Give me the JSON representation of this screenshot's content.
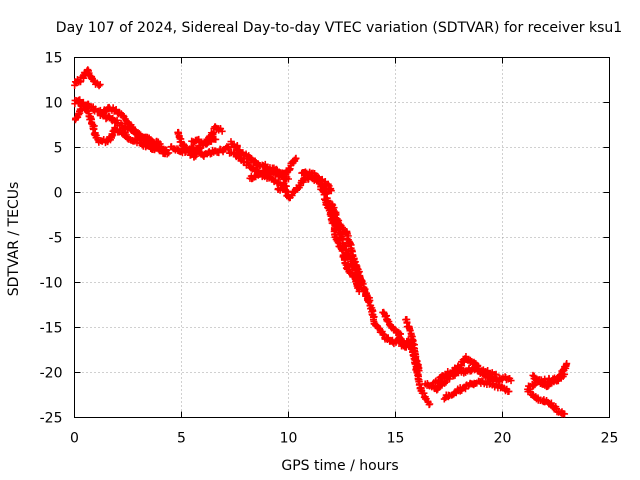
{
  "chart_data": {
    "type": "scatter",
    "title": "Day 107 of 2024, Sidereal Day-to-day VTEC variation (SDTVAR) for receiver ksu1",
    "xlabel": "GPS time / hours",
    "ylabel": "SDTVAR / TECUs",
    "xlim": [
      0,
      25
    ],
    "ylim": [
      -25,
      15
    ],
    "xticks": [
      0,
      5,
      10,
      15,
      20,
      25
    ],
    "yticks": [
      15,
      10,
      5,
      0,
      -5,
      -10,
      -15,
      -20,
      -25
    ],
    "grid": true,
    "marker": "+",
    "color": "#ff0000",
    "series": [
      {
        "name": "SDTVAR",
        "tracks": [
          [
            [
              0.0,
              12.0
            ],
            [
              0.25,
              12.5
            ],
            [
              0.45,
              13.0
            ],
            [
              0.6,
              13.5
            ],
            [
              0.7,
              13.2
            ],
            [
              0.85,
              12.5
            ],
            [
              1.0,
              12.2
            ],
            [
              1.2,
              12.0
            ]
          ],
          [
            [
              0.0,
              10.0
            ],
            [
              0.2,
              10.3
            ],
            [
              0.35,
              10.0
            ]
          ],
          [
            [
              0.0,
              8.0
            ],
            [
              0.2,
              8.8
            ],
            [
              0.4,
              9.8
            ],
            [
              0.6,
              9.7
            ],
            [
              0.8,
              9.4
            ],
            [
              1.0,
              9.2
            ],
            [
              1.3,
              8.8
            ],
            [
              1.5,
              9.2
            ],
            [
              1.8,
              9.3
            ],
            [
              2.0,
              9.0
            ],
            [
              2.3,
              8.5
            ],
            [
              2.5,
              7.8
            ],
            [
              2.7,
              7.2
            ],
            [
              3.0,
              6.3
            ],
            [
              3.3,
              5.8
            ],
            [
              3.6,
              5.0
            ],
            [
              4.0,
              4.9
            ],
            [
              4.3,
              4.7
            ]
          ],
          [
            [
              0.5,
              9.5
            ],
            [
              0.7,
              8.5
            ],
            [
              0.9,
              7.2
            ],
            [
              1.0,
              6.0
            ],
            [
              1.2,
              5.6
            ],
            [
              1.5,
              5.7
            ],
            [
              1.7,
              6.1
            ],
            [
              1.9,
              7.0
            ],
            [
              2.2,
              6.8
            ],
            [
              2.5,
              6.2
            ],
            [
              2.8,
              5.8
            ],
            [
              3.1,
              5.4
            ],
            [
              3.4,
              5.1
            ],
            [
              3.6,
              5.3
            ],
            [
              3.9,
              4.9
            ],
            [
              4.1,
              4.6
            ],
            [
              4.4,
              4.4
            ]
          ],
          [
            [
              1.2,
              8.7
            ],
            [
              1.6,
              8.3
            ],
            [
              2.0,
              7.8
            ],
            [
              2.4,
              7.2
            ],
            [
              2.8,
              6.8
            ],
            [
              3.1,
              6.2
            ],
            [
              3.4,
              6.0
            ],
            [
              3.7,
              5.6
            ],
            [
              4.0,
              5.4
            ]
          ],
          [
            [
              4.5,
              5.0
            ],
            [
              4.8,
              4.9
            ],
            [
              5.0,
              4.5
            ],
            [
              5.2,
              4.6
            ],
            [
              5.5,
              5.0
            ],
            [
              5.8,
              4.7
            ],
            [
              6.0,
              4.2
            ],
            [
              6.3,
              4.4
            ],
            [
              6.6,
              4.6
            ],
            [
              6.9,
              4.7
            ],
            [
              7.2,
              5.0
            ]
          ],
          [
            [
              4.8,
              6.8
            ],
            [
              5.0,
              5.5
            ],
            [
              5.3,
              4.6
            ],
            [
              5.6,
              4.0
            ],
            [
              5.8,
              4.8
            ],
            [
              6.1,
              5.5
            ],
            [
              6.4,
              6.4
            ],
            [
              6.6,
              7.2
            ],
            [
              6.9,
              6.8
            ]
          ],
          [
            [
              5.5,
              5.5
            ],
            [
              5.8,
              5.8
            ],
            [
              6.0,
              5.4
            ],
            [
              6.3,
              5.6
            ],
            [
              6.6,
              5.9
            ]
          ],
          [
            [
              7.3,
              5.5
            ],
            [
              7.6,
              5.0
            ],
            [
              7.8,
              4.3
            ],
            [
              8.1,
              4.0
            ],
            [
              8.3,
              3.7
            ],
            [
              8.6,
              3.1
            ],
            [
              8.8,
              3.2
            ],
            [
              9.0,
              2.6
            ],
            [
              9.3,
              2.6
            ],
            [
              9.6,
              2.1
            ],
            [
              9.8,
              1.5
            ],
            [
              10.0,
              1.5
            ]
          ],
          [
            [
              7.2,
              4.6
            ],
            [
              7.5,
              4.4
            ],
            [
              7.7,
              3.9
            ],
            [
              8.0,
              3.3
            ],
            [
              8.3,
              2.8
            ],
            [
              8.5,
              2.4
            ],
            [
              8.8,
              1.9
            ],
            [
              9.0,
              1.7
            ],
            [
              9.3,
              1.4
            ],
            [
              9.5,
              1.1
            ],
            [
              9.7,
              0.9
            ],
            [
              9.9,
              0.7
            ]
          ],
          [
            [
              8.2,
              1.6
            ],
            [
              8.5,
              1.9
            ],
            [
              8.8,
              2.3
            ],
            [
              9.1,
              2.2
            ],
            [
              9.4,
              2.0
            ],
            [
              9.6,
              1.9
            ],
            [
              9.9,
              2.3
            ],
            [
              10.0,
              2.6
            ],
            [
              10.2,
              3.3
            ],
            [
              10.35,
              3.8
            ]
          ],
          [
            [
              9.5,
              0.3
            ],
            [
              9.8,
              0.5
            ],
            [
              10.0,
              -0.6
            ],
            [
              10.3,
              0.1
            ],
            [
              10.6,
              1.1
            ],
            [
              10.8,
              1.6
            ],
            [
              11.0,
              1.7
            ],
            [
              11.3,
              1.5
            ],
            [
              11.6,
              0.6
            ],
            [
              11.8,
              -0.1
            ]
          ],
          [
            [
              10.6,
              2.0
            ],
            [
              10.9,
              2.2
            ],
            [
              11.2,
              2.0
            ],
            [
              11.4,
              1.5
            ],
            [
              11.6,
              1.3
            ],
            [
              11.8,
              0.9
            ],
            [
              12.0,
              0.2
            ]
          ],
          [
            [
              11.5,
              0.5
            ],
            [
              11.8,
              -0.5
            ],
            [
              12.0,
              -1.8
            ],
            [
              12.2,
              -3.2
            ],
            [
              12.4,
              -4.5
            ],
            [
              12.6,
              -5.8
            ],
            [
              12.8,
              -7.0
            ],
            [
              13.0,
              -8.0
            ],
            [
              13.2,
              -9.0
            ],
            [
              13.4,
              -10.0
            ]
          ],
          [
            [
              11.7,
              -0.8
            ],
            [
              11.9,
              -2.0
            ],
            [
              12.1,
              -3.5
            ],
            [
              12.2,
              -4.8
            ],
            [
              12.3,
              -5.4
            ],
            [
              12.5,
              -6.4
            ],
            [
              12.6,
              -7.3
            ],
            [
              12.7,
              -8.3
            ],
            [
              12.9,
              -9.0
            ],
            [
              13.1,
              -9.5
            ],
            [
              13.3,
              -11.0
            ]
          ],
          [
            [
              12.0,
              -1.2
            ],
            [
              12.3,
              -3.0
            ],
            [
              12.5,
              -3.9
            ],
            [
              12.7,
              -4.5
            ],
            [
              12.9,
              -5.8
            ],
            [
              13.0,
              -7.2
            ],
            [
              13.2,
              -8.3
            ],
            [
              13.4,
              -9.7
            ],
            [
              13.6,
              -11.2
            ],
            [
              13.8,
              -12.0
            ]
          ],
          [
            [
              13.5,
              -10.7
            ],
            [
              13.7,
              -11.8
            ],
            [
              13.9,
              -13.0
            ],
            [
              14.0,
              -14.3
            ],
            [
              14.2,
              -15.1
            ],
            [
              14.4,
              -15.7
            ],
            [
              14.6,
              -16.3
            ],
            [
              14.8,
              -16.4
            ],
            [
              15.0,
              -16.7
            ],
            [
              15.2,
              -16.2
            ],
            [
              15.4,
              -16.8
            ],
            [
              15.6,
              -16.5
            ]
          ],
          [
            [
              14.4,
              -13.2
            ],
            [
              14.6,
              -14.1
            ],
            [
              14.8,
              -14.8
            ],
            [
              15.0,
              -15.3
            ],
            [
              15.2,
              -15.8
            ],
            [
              15.3,
              -17.0
            ],
            [
              15.5,
              -17.2
            ]
          ],
          [
            [
              15.6,
              -16.5
            ],
            [
              15.8,
              -17.5
            ],
            [
              15.9,
              -18.8
            ],
            [
              16.0,
              -20.0
            ],
            [
              16.1,
              -21.0
            ],
            [
              16.2,
              -22.0
            ],
            [
              16.4,
              -23.0
            ],
            [
              16.6,
              -23.5
            ]
          ],
          [
            [
              15.5,
              -14.2
            ],
            [
              15.7,
              -15.5
            ],
            [
              15.8,
              -16.4
            ],
            [
              15.9,
              -17.5
            ],
            [
              16.0,
              -18.8
            ],
            [
              16.1,
              -19.8
            ]
          ],
          [
            [
              16.4,
              -21.2
            ],
            [
              16.7,
              -21.6
            ],
            [
              17.0,
              -21.8
            ],
            [
              17.3,
              -21.0
            ],
            [
              17.6,
              -20.3
            ],
            [
              18.0,
              -20.0
            ],
            [
              18.3,
              -19.8
            ],
            [
              18.6,
              -19.6
            ],
            [
              18.9,
              -19.8
            ],
            [
              19.2,
              -20.4
            ],
            [
              19.5,
              -20.7
            ],
            [
              19.8,
              -20.8
            ],
            [
              20.1,
              -20.6
            ],
            [
              20.4,
              -20.9
            ]
          ],
          [
            [
              16.8,
              -21.2
            ],
            [
              17.2,
              -20.4
            ],
            [
              17.6,
              -19.9
            ],
            [
              18.0,
              -19.3
            ],
            [
              18.3,
              -18.4
            ],
            [
              18.6,
              -19.0
            ],
            [
              19.0,
              -19.7
            ],
            [
              19.4,
              -20.0
            ],
            [
              19.7,
              -20.2
            ]
          ],
          [
            [
              17.3,
              -22.8
            ],
            [
              17.7,
              -22.3
            ],
            [
              18.0,
              -21.9
            ],
            [
              18.4,
              -21.5
            ],
            [
              18.7,
              -21.2
            ],
            [
              19.1,
              -21.0
            ],
            [
              19.5,
              -21.3
            ],
            [
              19.9,
              -21.7
            ],
            [
              20.3,
              -22.1
            ]
          ],
          [
            [
              21.2,
              -21.8
            ],
            [
              21.5,
              -21.3
            ],
            [
              21.8,
              -21.0
            ],
            [
              22.1,
              -20.9
            ],
            [
              22.4,
              -20.7
            ],
            [
              22.7,
              -20.5
            ],
            [
              23.0,
              -19.0
            ]
          ],
          [
            [
              21.2,
              -22.0
            ],
            [
              21.6,
              -22.8
            ],
            [
              22.0,
              -23.2
            ],
            [
              22.3,
              -23.5
            ],
            [
              22.6,
              -24.3
            ],
            [
              22.9,
              -24.6
            ]
          ],
          [
            [
              21.4,
              -20.4
            ],
            [
              21.7,
              -20.8
            ],
            [
              22.0,
              -21.4
            ],
            [
              22.3,
              -21.2
            ],
            [
              22.6,
              -20.7
            ],
            [
              22.9,
              -20.2
            ]
          ]
        ]
      }
    ]
  }
}
